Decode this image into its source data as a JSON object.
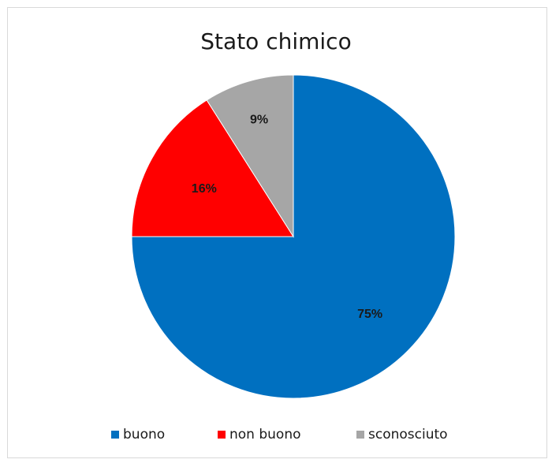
{
  "chart_data": {
    "type": "pie",
    "title": "Stato chimico",
    "categories": [
      "buono",
      "non buono",
      "sconosciuto"
    ],
    "values": [
      75,
      16,
      9
    ],
    "labels": [
      "75%",
      "16%",
      "9%"
    ],
    "colors": [
      "#0070C0",
      "#FF0000",
      "#A6A6A6"
    ],
    "legend_position": "bottom"
  }
}
